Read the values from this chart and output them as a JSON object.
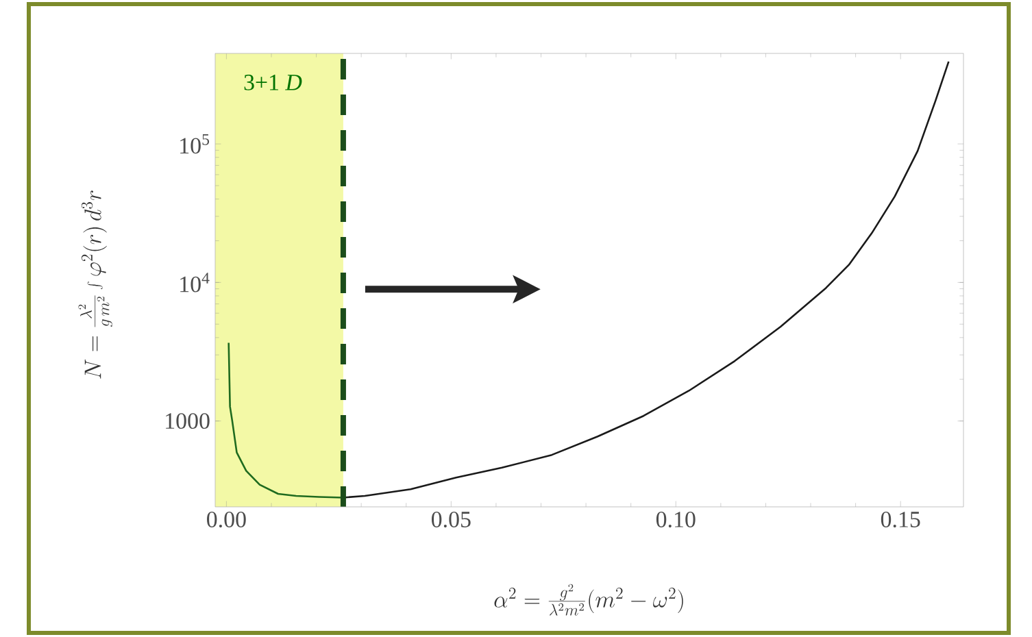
{
  "chart_data": {
    "type": "line",
    "xlabel": "\\alpha^2 = \\frac{g^2}{\\lambda^2 m^2}(m^2-\\omega^2)",
    "ylabel": "N = \\frac{\\lambda^2}{g\\,m^2}\\int\\varphi^2(r)\\,d^3r",
    "xlim": [
      -0.0025,
      0.164
    ],
    "ylim": [
      240,
      450000
    ],
    "xticks": [
      {
        "value": 0,
        "label": "0.00"
      },
      {
        "value": 0.05,
        "label": "0.05"
      },
      {
        "value": 0.1,
        "label": "0.10"
      },
      {
        "value": 0.15,
        "label": "0.15"
      }
    ],
    "yticks": [
      1000,
      {
        "value": 10000,
        "label": "10$^{4}$"
      },
      {
        "value": 100000,
        "label": "10$^{5}$"
      }
    ],
    "log": "y",
    "marker": "none",
    "line_style": "solid",
    "series": [
      {
        "color": "#1f6b1f",
        "x": [
          0.0005,
          0.0008,
          0.0013,
          0.0023,
          0.0044,
          0.0074,
          0.0115,
          0.0155,
          0.0206,
          0.026
        ],
        "values": [
          3670,
          1270,
          1000,
          592,
          437,
          347,
          298,
          288,
          283,
          280
        ]
      },
      {
        "color": "#1a1a1a",
        "x": [
          0.026,
          0.0308,
          0.041,
          0.0511,
          0.0613,
          0.0724,
          0.0826,
          0.0928,
          0.1029,
          0.1131,
          0.1233,
          0.1334,
          0.1385,
          0.1436,
          0.1487,
          0.1538,
          0.1578,
          0.1607
        ],
        "values": [
          280,
          288,
          322,
          390,
          460,
          569,
          773,
          1088,
          1653,
          2710,
          4790,
          9120,
          13400,
          22700,
          41700,
          89000,
          206000,
          393000
        ]
      }
    ],
    "bands": [
      {
        "axis": "x",
        "from": -0.0025,
        "to": 0.026,
        "label": "3+1 *D*",
        "color": "#f3f9a6"
      }
    ],
    "ref_lines": [
      {
        "axis": "x",
        "value": 0.026,
        "line_style": "dashed",
        "color": "#1b4d1b"
      }
    ]
  }
}
